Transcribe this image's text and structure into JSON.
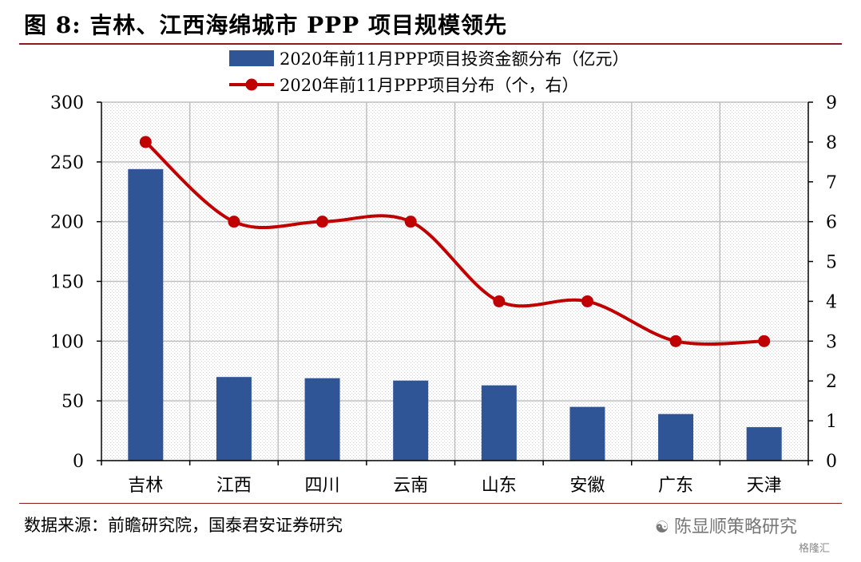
{
  "figure": {
    "title": "图 8:  吉林、江西海绵城市 PPP 项目规模领先",
    "source": "数据来源：前瞻研究院，国泰君安证券研究",
    "watermark": "陈显顺策略研究",
    "watermark_icon": "wechat-icon",
    "watermark2": "格隆汇",
    "colors": {
      "bar": "#2f5597",
      "line": "#c00000",
      "rule": "#8b1a1a"
    }
  },
  "chart_data": {
    "type": "bar",
    "categories": [
      "吉林",
      "江西",
      "四川",
      "云南",
      "山东",
      "安徽",
      "广东",
      "天津"
    ],
    "series": [
      {
        "name": "2020年前11月PPP项目投资金额分布（亿元）",
        "type": "bar",
        "axis": "left",
        "values": [
          244,
          70,
          69,
          67,
          63,
          45,
          39,
          28
        ]
      },
      {
        "name": "2020年前11月PPP项目分布（个，右）",
        "type": "line",
        "axis": "right",
        "smooth": true,
        "values": [
          8,
          6,
          6,
          6,
          4,
          4,
          3,
          3
        ]
      }
    ],
    "ylim": [
      0,
      300
    ],
    "yticks": [
      0,
      50,
      100,
      150,
      200,
      250,
      300
    ],
    "y2lim": [
      0,
      9
    ],
    "y2ticks": [
      0,
      1,
      2,
      3,
      4,
      5,
      6,
      7,
      8,
      9
    ],
    "grid": true,
    "legend": "top-center"
  }
}
